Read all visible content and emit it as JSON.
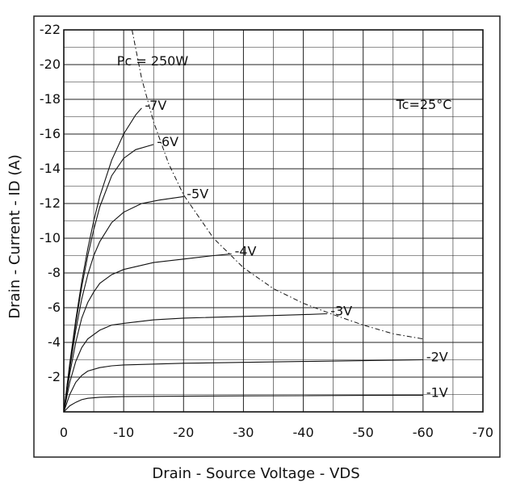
{
  "chart_data": {
    "type": "line",
    "title": "",
    "xlabel": "Drain - Source Voltage - VDS",
    "ylabel": "Drain - Current - ID (A)",
    "xlim": [
      0,
      -70
    ],
    "ylim": [
      0,
      -22
    ],
    "x_ticks": [
      "0",
      "-10",
      "-20",
      "-30",
      "-40",
      "-50",
      "-60",
      "-70"
    ],
    "y_ticks": [
      "-2",
      "-4",
      "-6",
      "-8",
      "-10",
      "-12",
      "-14",
      "-16",
      "-18",
      "-20",
      "-22"
    ],
    "grid": true,
    "annotations": {
      "power_limit": "Pc = 250W",
      "temperature": "Tc=25°C"
    },
    "power_limit_curve": {
      "label": "Pc = 250W",
      "style": "dashed",
      "x": [
        -11.4,
        -13,
        -15,
        -17.5,
        -20,
        -25,
        -30,
        -35,
        -40,
        -45,
        -50,
        -55,
        -60
      ],
      "y": [
        -22,
        -19.2,
        -16.7,
        -14.3,
        -12.5,
        -10,
        -8.3,
        -7.1,
        -6.25,
        -5.6,
        -5,
        -4.5,
        -4.2
      ]
    },
    "series": [
      {
        "name": "-7V",
        "x": [
          0,
          -1,
          -2,
          -3,
          -4,
          -5,
          -6,
          -8,
          -10,
          -12,
          -13
        ],
        "y": [
          0,
          -2.8,
          -5.3,
          -7.5,
          -9.4,
          -11,
          -12.4,
          -14.5,
          -16,
          -17.1,
          -17.5
        ]
      },
      {
        "name": "-6V",
        "x": [
          0,
          -1,
          -2,
          -3,
          -4,
          -5,
          -6,
          -8,
          -10,
          -12,
          -15
        ],
        "y": [
          0,
          -2.7,
          -5.1,
          -7.2,
          -9,
          -10.5,
          -11.8,
          -13.6,
          -14.6,
          -15.1,
          -15.4
        ]
      },
      {
        "name": "-5V",
        "x": [
          0,
          -1,
          -2,
          -3,
          -4,
          -5,
          -6,
          -8,
          -10,
          -13,
          -16,
          -20
        ],
        "y": [
          0,
          -2.5,
          -4.7,
          -6.5,
          -7.9,
          -9,
          -9.8,
          -10.9,
          -11.5,
          -12,
          -12.2,
          -12.4
        ]
      },
      {
        "name": "-4V",
        "x": [
          0,
          -1,
          -2,
          -3,
          -4,
          -5,
          -6,
          -8,
          -10,
          -15,
          -20,
          -25,
          -28
        ],
        "y": [
          0,
          -2.2,
          -4,
          -5.4,
          -6.3,
          -6.9,
          -7.4,
          -7.9,
          -8.2,
          -8.6,
          -8.8,
          -9,
          -9.1
        ]
      },
      {
        "name": "-3V",
        "x": [
          0,
          -1,
          -2,
          -3,
          -4,
          -6,
          -8,
          -10,
          -15,
          -20,
          -30,
          -40,
          -44
        ],
        "y": [
          0,
          -1.7,
          -2.9,
          -3.7,
          -4.2,
          -4.7,
          -5,
          -5.1,
          -5.3,
          -5.4,
          -5.5,
          -5.6,
          -5.65
        ]
      },
      {
        "name": "-2V",
        "x": [
          0,
          -1,
          -2,
          -3,
          -4,
          -6,
          -8,
          -10,
          -20,
          -30,
          -40,
          -50,
          -60
        ],
        "y": [
          0,
          -1,
          -1.7,
          -2.1,
          -2.35,
          -2.55,
          -2.65,
          -2.7,
          -2.8,
          -2.85,
          -2.9,
          -2.95,
          -3
        ]
      },
      {
        "name": "-1V",
        "x": [
          0,
          -1,
          -2,
          -3,
          -4,
          -6,
          -10,
          -20,
          -30,
          -40,
          -50,
          -60
        ],
        "y": [
          0,
          -0.35,
          -0.55,
          -0.7,
          -0.78,
          -0.84,
          -0.88,
          -0.9,
          -0.92,
          -0.93,
          -0.95,
          -0.96
        ]
      }
    ]
  }
}
